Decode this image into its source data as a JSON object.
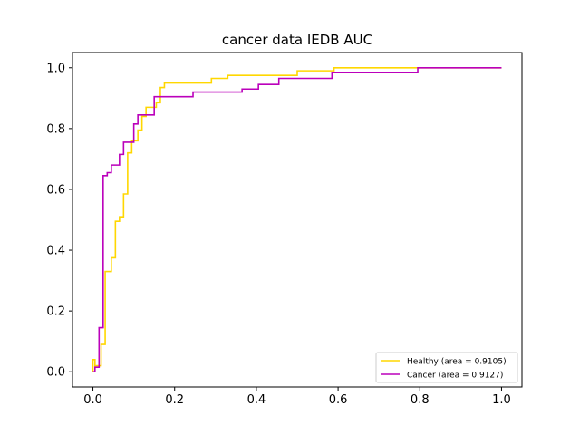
{
  "chart_data": {
    "type": "line",
    "title": "cancer data IEDB AUC",
    "xlabel": "",
    "ylabel": "",
    "xlim": [
      -0.05,
      1.05
    ],
    "ylim": [
      -0.05,
      1.05
    ],
    "x_ticks": [
      0.0,
      0.2,
      0.4,
      0.6,
      0.8,
      1.0
    ],
    "x_tick_labels": [
      "0.0",
      "0.2",
      "0.4",
      "0.6",
      "0.8",
      "1.0"
    ],
    "y_ticks": [
      0.0,
      0.2,
      0.4,
      0.6,
      0.8,
      1.0
    ],
    "y_tick_labels": [
      "0.0",
      "0.2",
      "0.4",
      "0.6",
      "0.8",
      "1.0"
    ],
    "grid": false,
    "legend_position": "lower right",
    "series": [
      {
        "name": "Healthy (area = 0.9105)",
        "color": "#FFD700",
        "step": true,
        "x": [
          0.0,
          0.0,
          0.005,
          0.005,
          0.02,
          0.02,
          0.03,
          0.03,
          0.045,
          0.045,
          0.055,
          0.055,
          0.065,
          0.065,
          0.075,
          0.075,
          0.085,
          0.085,
          0.095,
          0.095,
          0.11,
          0.11,
          0.12,
          0.12,
          0.13,
          0.13,
          0.155,
          0.155,
          0.165,
          0.165,
          0.175,
          0.175,
          0.185,
          0.185,
          0.29,
          0.29,
          0.33,
          0.33,
          0.5,
          0.5,
          0.59,
          0.59,
          0.8,
          0.8,
          1.0
        ],
        "y": [
          0.0,
          0.04,
          0.04,
          0.02,
          0.02,
          0.09,
          0.09,
          0.33,
          0.33,
          0.375,
          0.375,
          0.495,
          0.495,
          0.51,
          0.51,
          0.585,
          0.585,
          0.72,
          0.72,
          0.76,
          0.76,
          0.795,
          0.795,
          0.84,
          0.84,
          0.87,
          0.87,
          0.885,
          0.885,
          0.935,
          0.935,
          0.95,
          0.95,
          0.95,
          0.95,
          0.965,
          0.965,
          0.975,
          0.975,
          0.99,
          0.99,
          1.0,
          1.0,
          1.0,
          1.0
        ]
      },
      {
        "name": "Cancer (area = 0.9127)",
        "color": "#BB00BB",
        "step": true,
        "x": [
          0.0,
          0.005,
          0.005,
          0.015,
          0.015,
          0.025,
          0.025,
          0.035,
          0.035,
          0.045,
          0.045,
          0.065,
          0.065,
          0.075,
          0.075,
          0.085,
          0.085,
          0.1,
          0.1,
          0.11,
          0.11,
          0.15,
          0.15,
          0.245,
          0.245,
          0.365,
          0.365,
          0.405,
          0.405,
          0.455,
          0.455,
          0.585,
          0.585,
          0.795,
          0.795,
          1.0
        ],
        "y": [
          0.0,
          0.0,
          0.015,
          0.015,
          0.145,
          0.145,
          0.645,
          0.645,
          0.655,
          0.655,
          0.68,
          0.68,
          0.715,
          0.715,
          0.755,
          0.755,
          0.755,
          0.755,
          0.815,
          0.815,
          0.845,
          0.845,
          0.905,
          0.905,
          0.92,
          0.92,
          0.93,
          0.93,
          0.945,
          0.945,
          0.965,
          0.965,
          0.985,
          0.985,
          1.0,
          1.0
        ]
      }
    ]
  }
}
